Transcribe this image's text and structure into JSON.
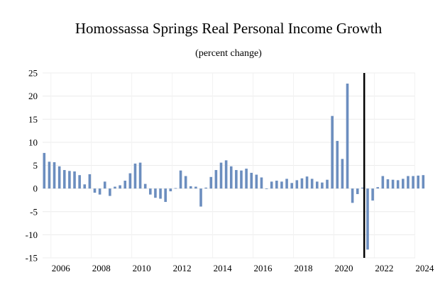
{
  "chart_data": {
    "type": "bar",
    "title": "Homossassa Springs Real Personal Income Growth",
    "subtitle": "(percent change)",
    "xlabel": "",
    "ylabel": "",
    "ylim": [
      -15,
      25
    ],
    "y_ticks": [
      "25",
      "20",
      "15",
      "10",
      "5",
      "0",
      "-5",
      "-10",
      "-15"
    ],
    "x_ticks": [
      "2006",
      "2008",
      "2010",
      "2012",
      "2014",
      "2016",
      "2018",
      "2020",
      "2022",
      "2024"
    ],
    "grid": true,
    "bar_color": "#6c8ebf",
    "forecast_marker_color": "#000000",
    "forecast_start": "2021Q3",
    "categories": [
      "2005Q3",
      "2005Q4",
      "2006Q1",
      "2006Q2",
      "2006Q3",
      "2006Q4",
      "2007Q1",
      "2007Q2",
      "2007Q3",
      "2007Q4",
      "2008Q1",
      "2008Q2",
      "2008Q3",
      "2008Q4",
      "2009Q1",
      "2009Q2",
      "2009Q3",
      "2009Q4",
      "2010Q1",
      "2010Q2",
      "2010Q3",
      "2010Q4",
      "2011Q1",
      "2011Q2",
      "2011Q3",
      "2011Q4",
      "2012Q1",
      "2012Q2",
      "2012Q3",
      "2012Q4",
      "2013Q1",
      "2013Q2",
      "2013Q3",
      "2013Q4",
      "2014Q1",
      "2014Q2",
      "2014Q3",
      "2014Q4",
      "2015Q1",
      "2015Q2",
      "2015Q3",
      "2015Q4",
      "2016Q1",
      "2016Q2",
      "2016Q3",
      "2016Q4",
      "2017Q1",
      "2017Q2",
      "2017Q3",
      "2017Q4",
      "2018Q1",
      "2018Q2",
      "2018Q3",
      "2018Q4",
      "2019Q1",
      "2019Q2",
      "2019Q3",
      "2019Q4",
      "2020Q1",
      "2020Q2",
      "2020Q3",
      "2020Q4",
      "2021Q1",
      "2021Q2",
      "2021Q3",
      "2021Q4",
      "2022Q1",
      "2022Q2",
      "2022Q3",
      "2022Q4",
      "2023Q1",
      "2023Q2",
      "2023Q3",
      "2023Q4",
      "2024Q1",
      "2024Q2",
      "2024Q3",
      "2024Q4"
    ],
    "values": [
      7.7,
      5.8,
      5.7,
      4.8,
      4.0,
      3.8,
      3.7,
      2.9,
      0.9,
      3.1,
      -0.9,
      -1.3,
      1.5,
      -1.6,
      0.4,
      0.7,
      1.7,
      3.3,
      5.4,
      5.6,
      1.0,
      -1.3,
      -2.0,
      -2.2,
      -2.9,
      -0.6,
      0.1,
      3.9,
      2.7,
      0.5,
      0.4,
      -3.9,
      0.2,
      2.5,
      4.0,
      5.6,
      6.1,
      4.8,
      4.0,
      3.9,
      4.3,
      3.4,
      3.0,
      2.4,
      -0.1,
      1.5,
      1.7,
      1.5,
      2.1,
      1.2,
      1.8,
      2.2,
      2.6,
      2.1,
      1.5,
      1.3,
      1.9,
      15.7,
      10.3,
      6.4,
      22.7,
      -3.1,
      -1.2,
      0.2,
      -13.2,
      -2.6,
      0.3,
      2.7,
      2.0,
      1.9,
      1.8,
      2.1,
      2.7,
      2.7,
      2.8,
      2.9,
      0,
      0
    ]
  }
}
